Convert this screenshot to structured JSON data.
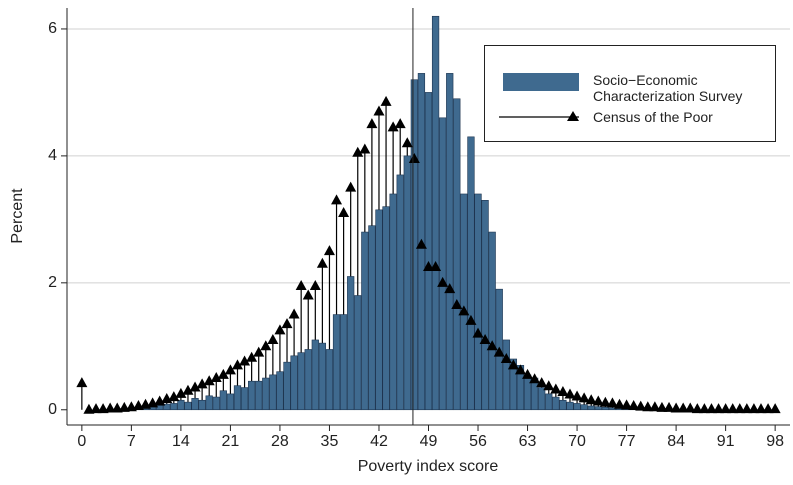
{
  "chart_data": {
    "type": "histogram-spike",
    "xlabel": "Poverty index score",
    "ylabel": "Percent",
    "x": [
      0,
      1,
      2,
      3,
      4,
      5,
      6,
      7,
      8,
      9,
      10,
      11,
      12,
      13,
      14,
      15,
      16,
      17,
      18,
      19,
      20,
      21,
      22,
      23,
      24,
      25,
      26,
      27,
      28,
      29,
      30,
      31,
      32,
      33,
      34,
      35,
      36,
      37,
      38,
      39,
      40,
      41,
      42,
      43,
      44,
      45,
      46,
      47,
      48,
      49,
      50,
      51,
      52,
      53,
      54,
      55,
      56,
      57,
      58,
      59,
      60,
      61,
      62,
      63,
      64,
      65,
      66,
      67,
      68,
      69,
      70,
      71,
      72,
      73,
      74,
      75,
      76,
      77,
      78,
      79,
      80,
      81,
      82,
      83,
      84,
      85,
      86,
      87,
      88,
      89,
      90,
      91,
      92,
      93,
      94,
      95,
      96,
      97,
      98
    ],
    "series": [
      {
        "name": "Socio−Economic\nCharacterization Survey",
        "kind": "bar",
        "color": "#3f6a8f",
        "values": [
          0,
          0,
          0,
          0,
          0.01,
          0.01,
          0.02,
          0.03,
          0.04,
          0.05,
          0.06,
          0.07,
          0.09,
          0.1,
          0.15,
          0.12,
          0.18,
          0.15,
          0.22,
          0.2,
          0.3,
          0.25,
          0.38,
          0.35,
          0.45,
          0.45,
          0.5,
          0.55,
          0.6,
          0.75,
          0.85,
          0.9,
          0.95,
          1.1,
          1.05,
          0.95,
          1.5,
          1.5,
          2.1,
          1.8,
          2.8,
          2.9,
          3.15,
          3.2,
          3.4,
          3.7,
          4.0,
          5.2,
          5.3,
          5.0,
          6.2,
          4.6,
          5.3,
          4.9,
          3.4,
          4.3,
          3.4,
          3.3,
          2.8,
          1.9,
          1.1,
          0.8,
          0.7,
          0.55,
          0.5,
          0.35,
          0.25,
          0.2,
          0.15,
          0.12,
          0.1,
          0.08,
          0.06,
          0.05,
          0.04,
          0.03,
          0.03,
          0.02,
          0.02,
          0.01,
          0,
          0,
          0,
          0,
          0,
          0,
          0,
          0,
          0,
          0,
          0,
          0,
          0,
          0,
          0,
          0,
          0,
          0,
          0
        ]
      },
      {
        "name": "Census of the Poor",
        "kind": "spike",
        "color": "#000000",
        "values": [
          0.42,
          0,
          0.01,
          0.01,
          0.02,
          0.02,
          0.03,
          0.04,
          0.06,
          0.08,
          0.1,
          0.13,
          0.17,
          0.2,
          0.25,
          0.3,
          0.35,
          0.4,
          0.45,
          0.5,
          0.55,
          0.62,
          0.7,
          0.76,
          0.82,
          0.9,
          1.0,
          1.1,
          1.25,
          1.35,
          1.5,
          1.95,
          1.8,
          1.95,
          2.3,
          2.5,
          3.3,
          3.1,
          3.5,
          4.05,
          4.1,
          4.5,
          4.7,
          4.85,
          4.45,
          4.5,
          4.2,
          3.95,
          2.6,
          2.25,
          2.25,
          2.0,
          1.9,
          1.65,
          1.55,
          1.4,
          1.2,
          1.1,
          1.0,
          0.9,
          0.8,
          0.7,
          0.62,
          0.55,
          0.48,
          0.42,
          0.37,
          0.32,
          0.28,
          0.24,
          0.21,
          0.18,
          0.15,
          0.13,
          0.11,
          0.1,
          0.08,
          0.07,
          0.06,
          0.05,
          0.04,
          0.04,
          0.03,
          0.03,
          0.02,
          0.02,
          0.02,
          0.01,
          0.01,
          0.01,
          0.01,
          0.01,
          0.01,
          0.01,
          0.01,
          0.01,
          0.01,
          0.01,
          0.01
        ]
      }
    ],
    "vline": 46.8,
    "xlim": [
      -2.1,
      100.1
    ],
    "ylim": [
      -0.24,
      6.33
    ],
    "xticks": [
      0,
      7,
      14,
      21,
      28,
      35,
      42,
      49,
      56,
      63,
      70,
      77,
      84,
      91,
      98
    ],
    "yticks": [
      0,
      2,
      4,
      6
    ],
    "grid": true,
    "legend": "top-right"
  }
}
